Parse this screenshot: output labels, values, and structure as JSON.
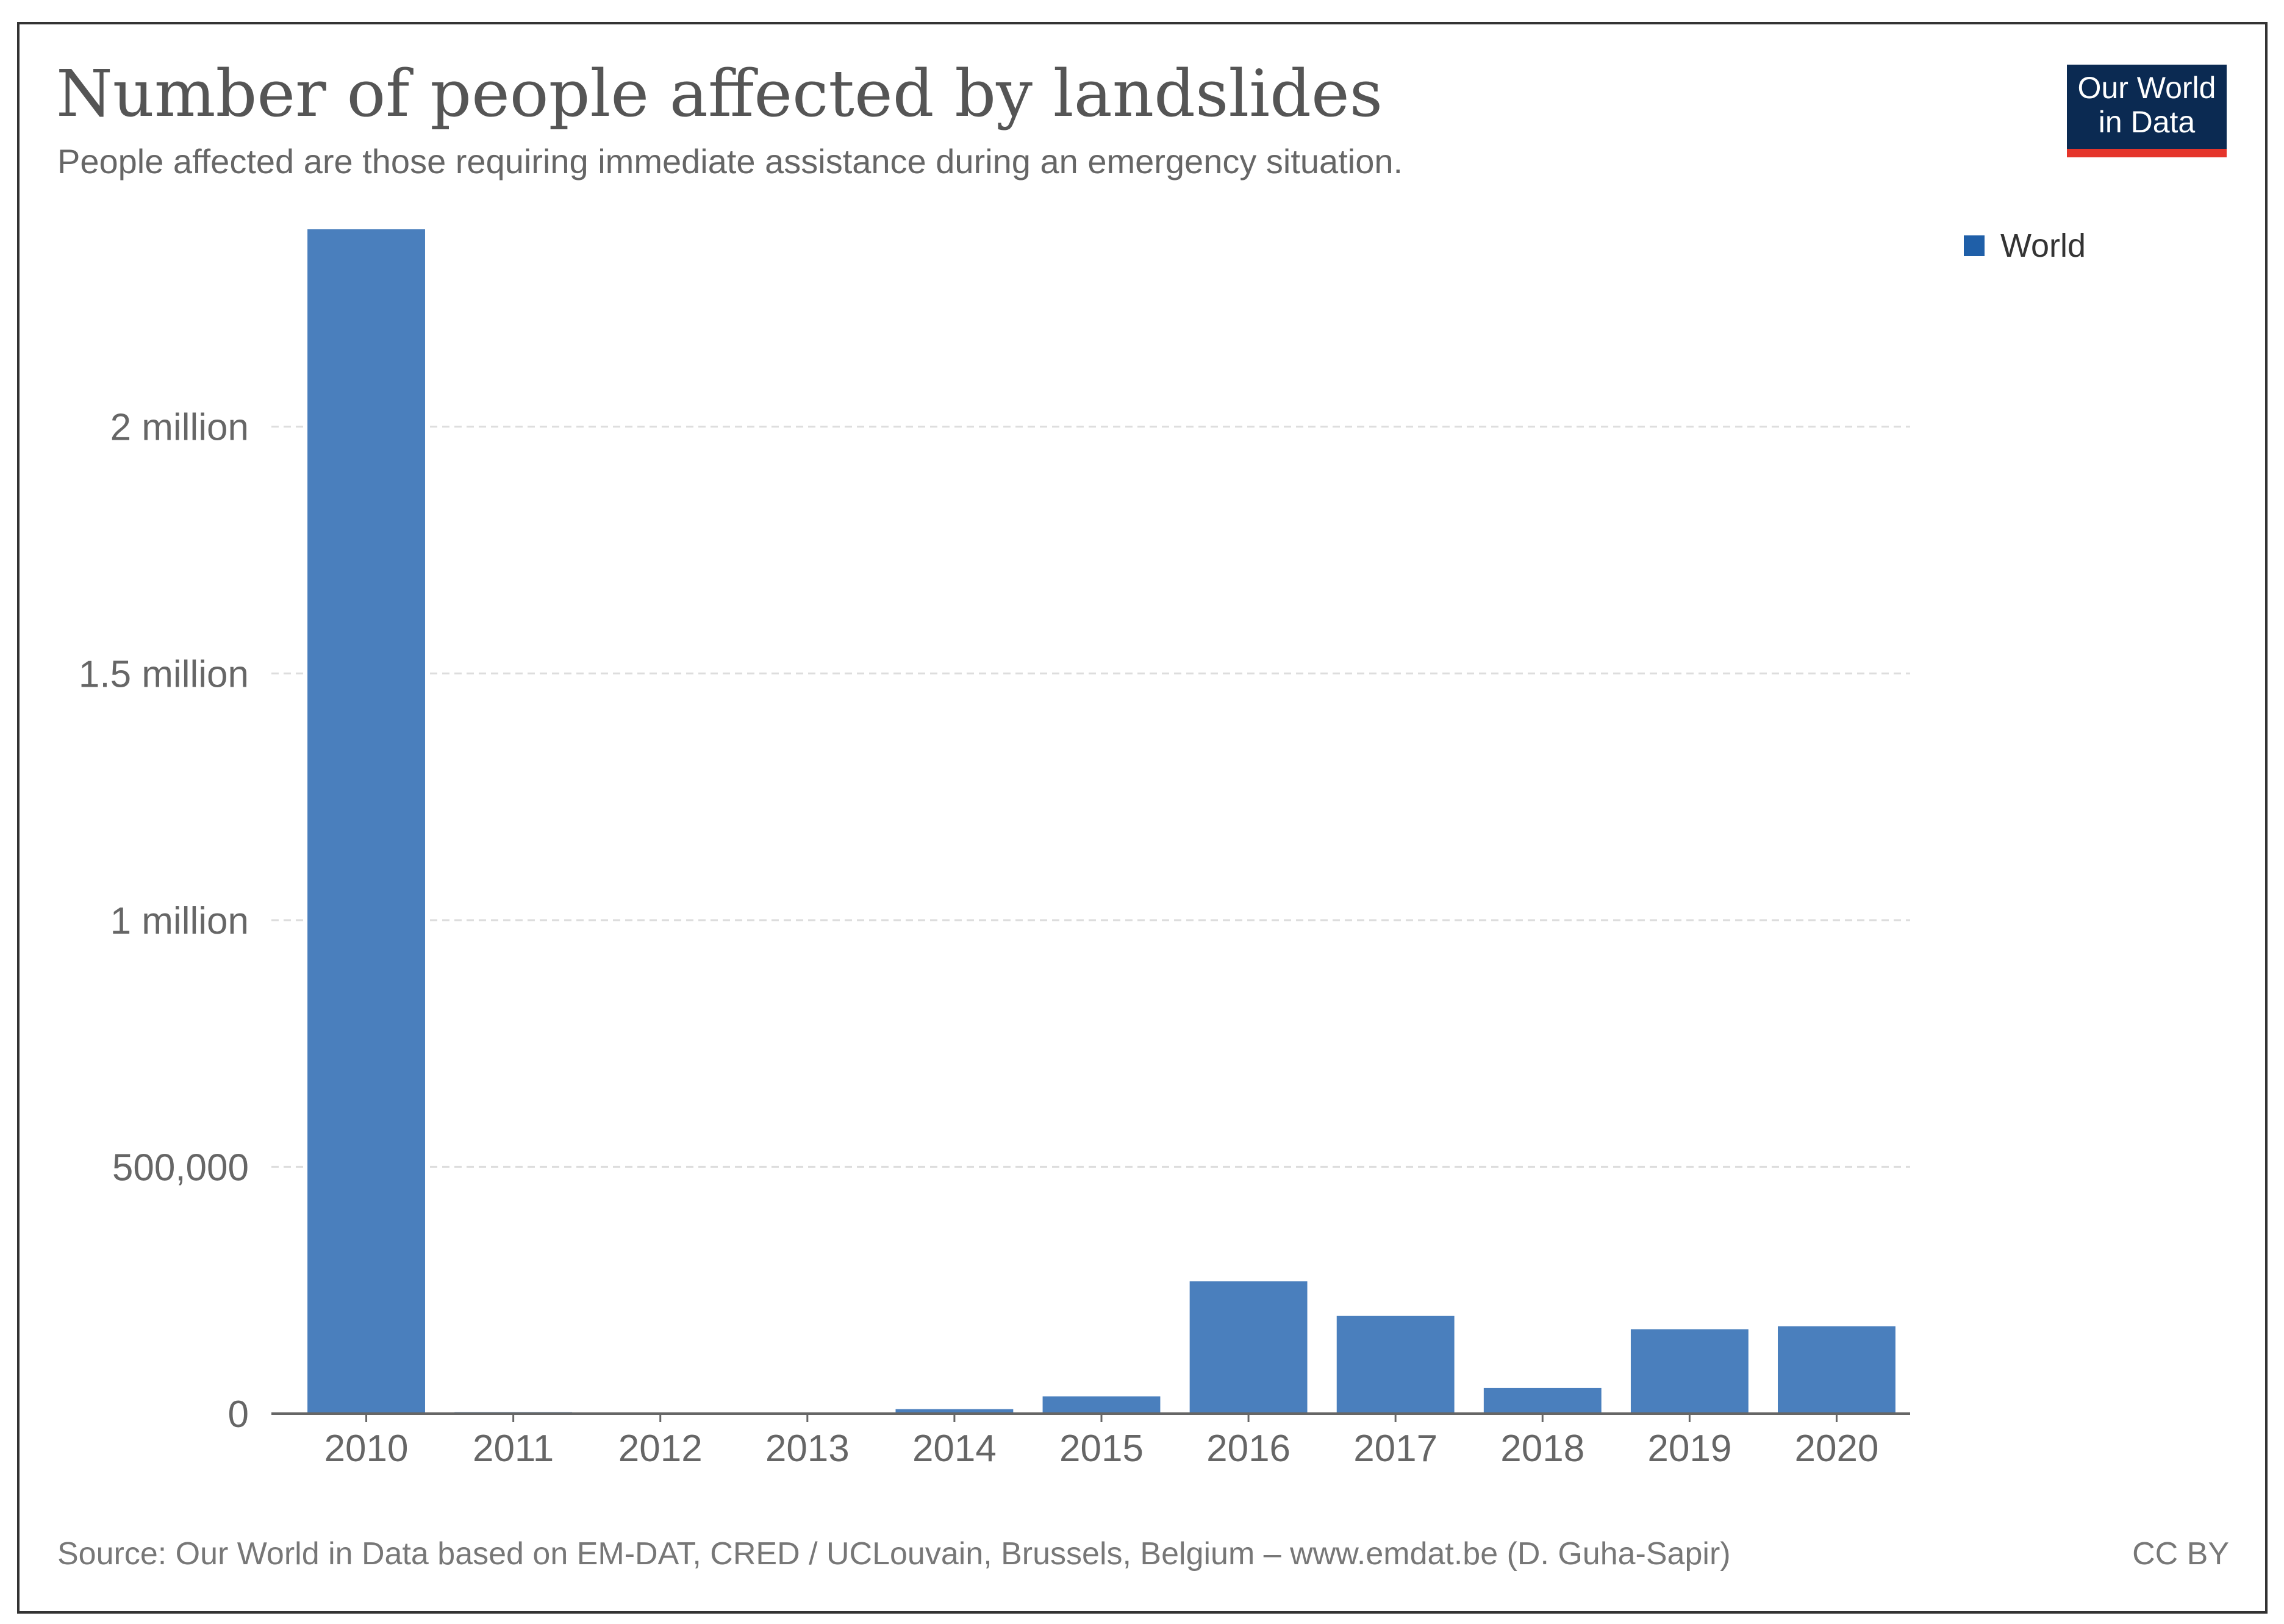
{
  "header": {
    "title": "Number of people affected by landslides",
    "subtitle": "People affected are those requiring immediate assistance during an emergency situation.",
    "logo_line1": "Our World",
    "logo_line2": "in Data"
  },
  "footer": {
    "source": "Source: Our World in Data based on EM-DAT, CRED / UCLouvain, Brussels, Belgium – www.emdat.be (D. Guha-Sapir)",
    "license": "CC BY"
  },
  "colors": {
    "bar": "#4a7fbd",
    "legend_swatch": "#1f5fa8",
    "grid": "#dddddd",
    "axis": "#666666"
  },
  "chart_data": {
    "type": "bar",
    "title": "Number of people affected by landslides",
    "xlabel": "",
    "ylabel": "",
    "legend": [
      "World"
    ],
    "legend_position": "top-right",
    "grid": true,
    "categories": [
      "2010",
      "2011",
      "2012",
      "2013",
      "2014",
      "2015",
      "2016",
      "2017",
      "2018",
      "2019",
      "2020"
    ],
    "series": [
      {
        "name": "World",
        "values": [
          2400000,
          3000,
          500,
          300,
          9000,
          35000,
          268000,
          198000,
          52000,
          171000,
          177000
        ]
      }
    ],
    "ylim": [
      0,
      2400000
    ],
    "yticks": [
      0,
      500000,
      1000000,
      1500000,
      2000000
    ],
    "ytick_labels": [
      "0",
      "500,000",
      "1 million",
      "1.5 million",
      "2 million"
    ]
  }
}
